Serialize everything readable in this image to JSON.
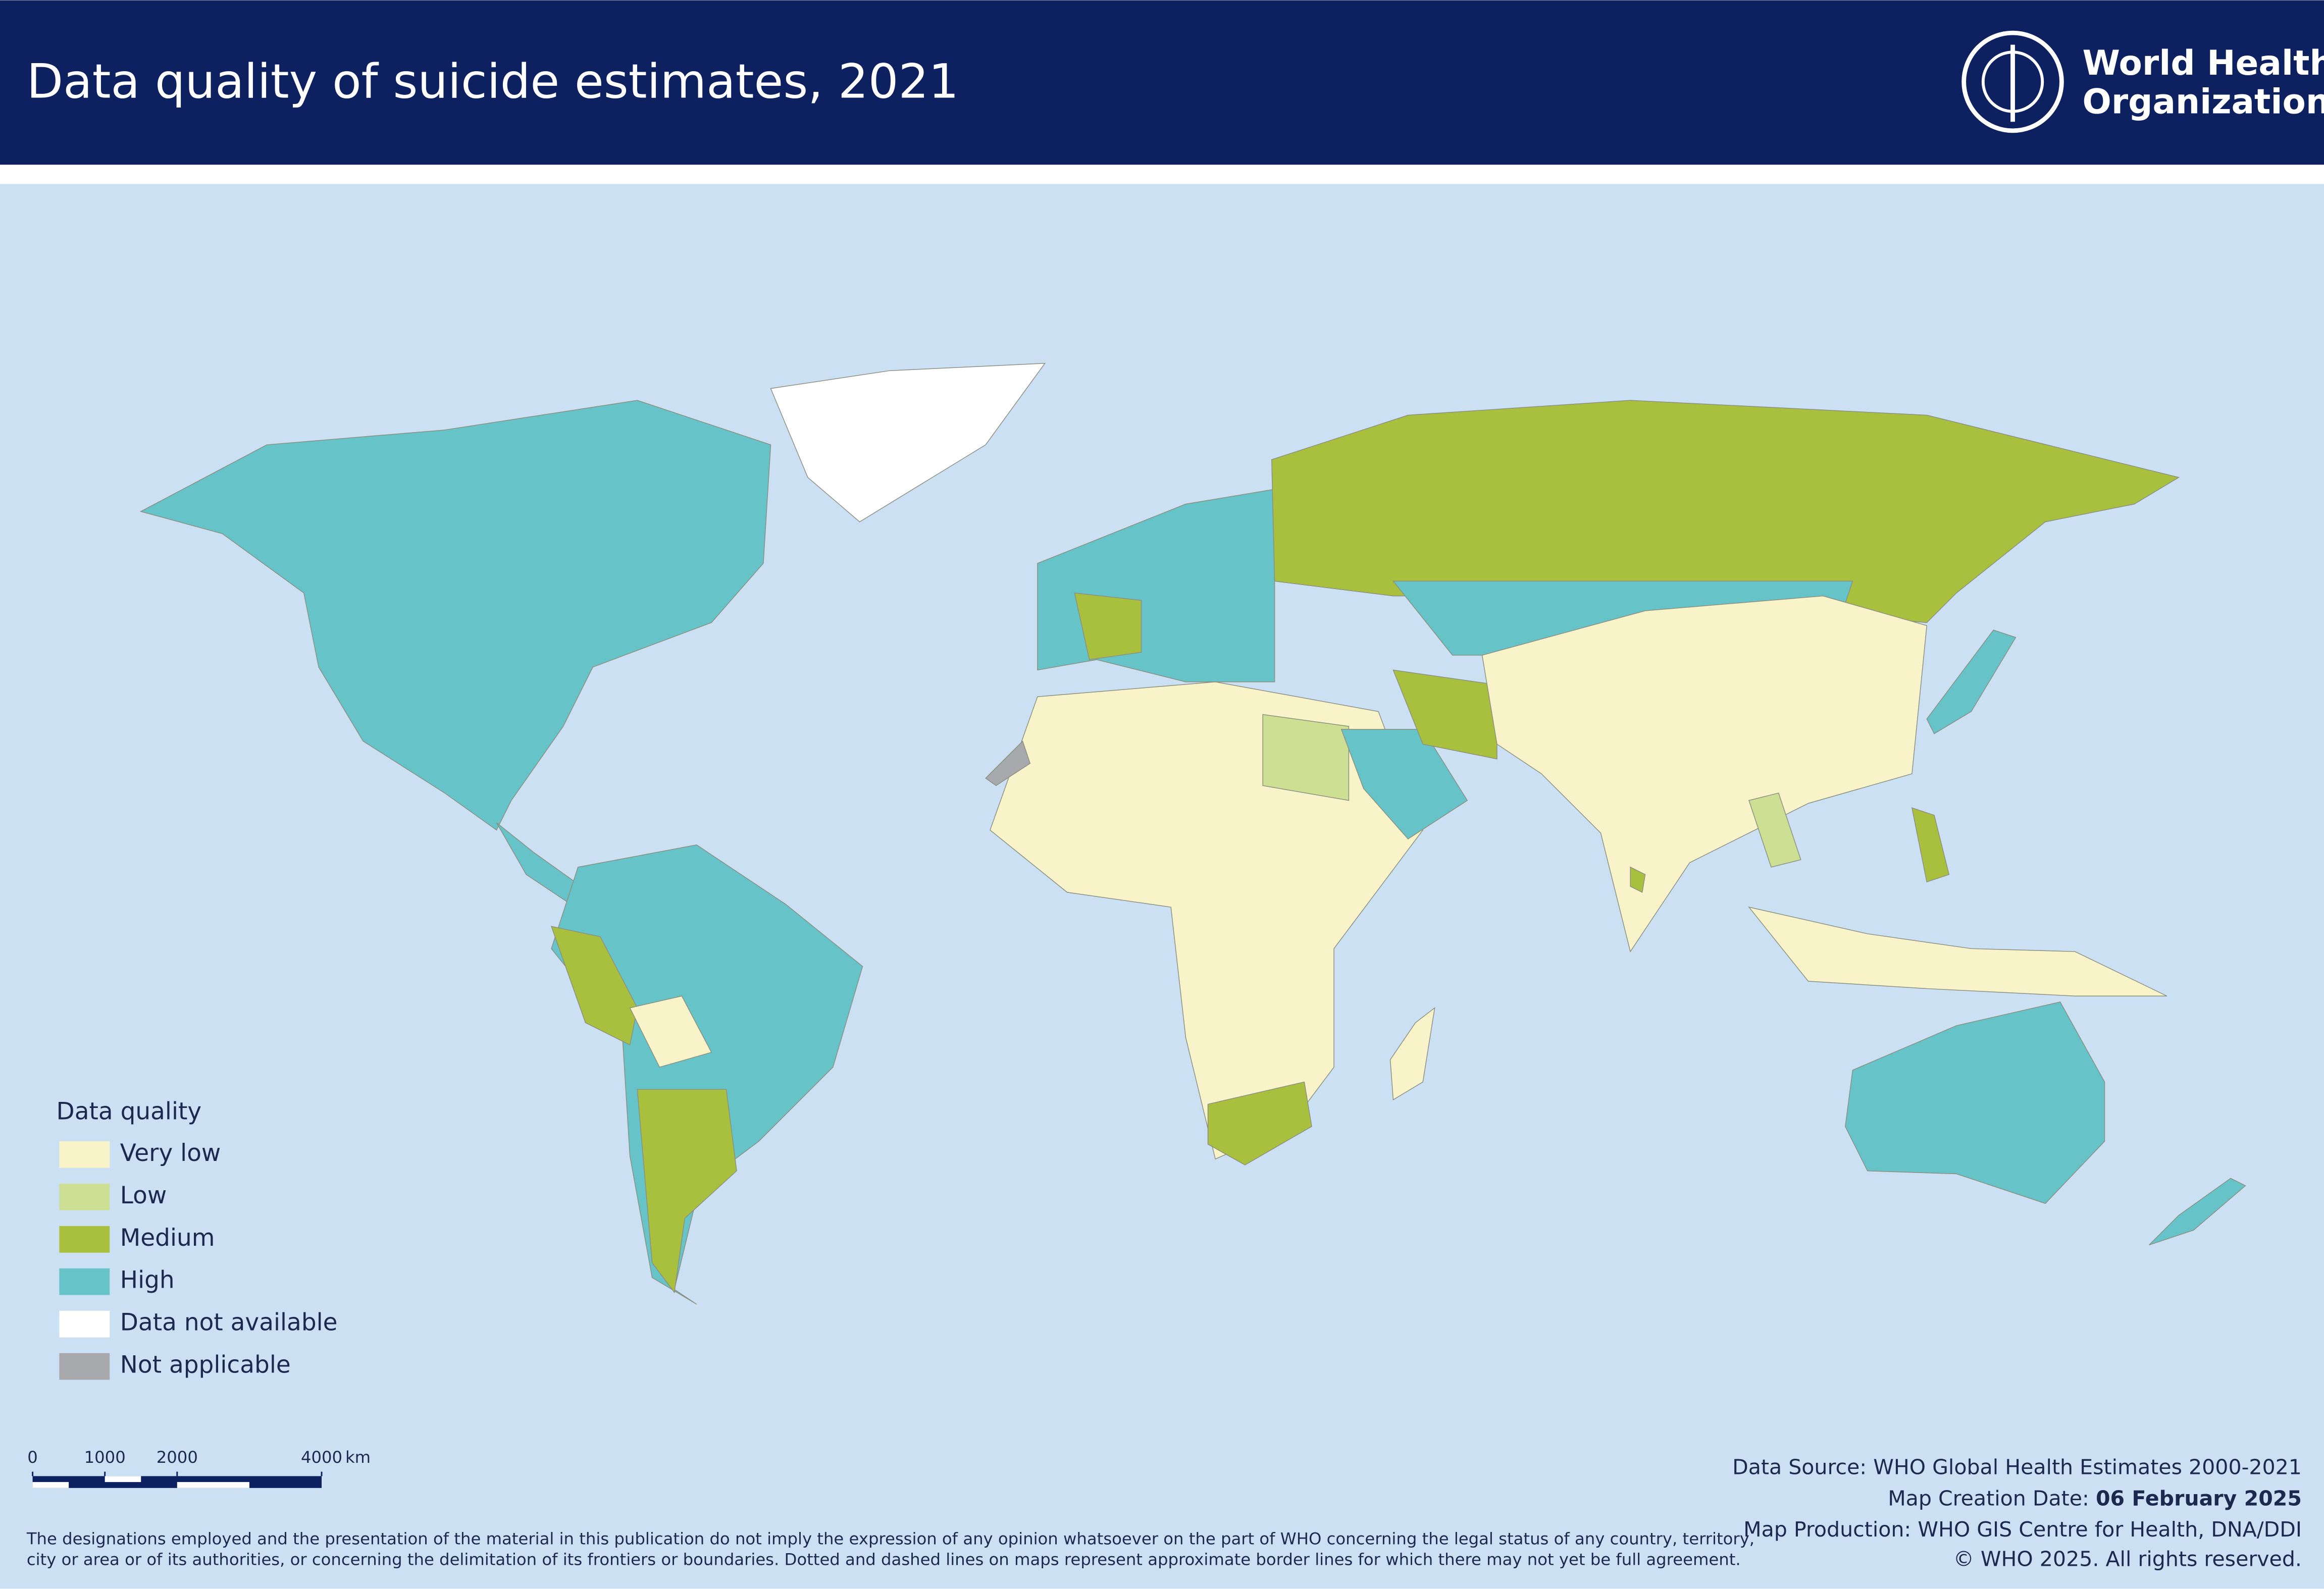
{
  "header": {
    "title": "Data quality of suicide estimates, 2021",
    "logo": [
      "World Health",
      "Organization"
    ]
  },
  "legend": {
    "title": "Data quality",
    "items": [
      {
        "label": "Very low",
        "color": "#f8f3c9"
      },
      {
        "label": "Low",
        "color": "#cddf92"
      },
      {
        "label": "Medium",
        "color": "#a9c03f"
      },
      {
        "label": "High",
        "color": "#66c3c7"
      },
      {
        "label": "Data not available",
        "color": "#ffffff"
      },
      {
        "label": "Not applicable",
        "color": "#a7a9ac"
      }
    ]
  },
  "scale_bar": {
    "ticks": [
      0,
      1000,
      2000,
      4000
    ],
    "unit": "km"
  },
  "footer": {
    "source": "Data Source: WHO Global Health Estimates 2000-2021",
    "creation_label": "Map Creation Date:",
    "creation_date": "06 February 2025",
    "production": "Map Production: WHO GIS Centre for Health, DNA/DDI",
    "copyright": "© WHO 2025. All rights reserved.",
    "disclaimer": [
      "The designations employed and the presentation of the material in this publication do not imply the expression of any opinion whatsoever on the part of WHO concerning the legal status of any country, territory,",
      "city or area or of its authorities, or concerning the delimitation of its frontiers or boundaries. Dotted and dashed lines on maps represent approximate border lines for which there may not yet be full agreement."
    ]
  }
}
